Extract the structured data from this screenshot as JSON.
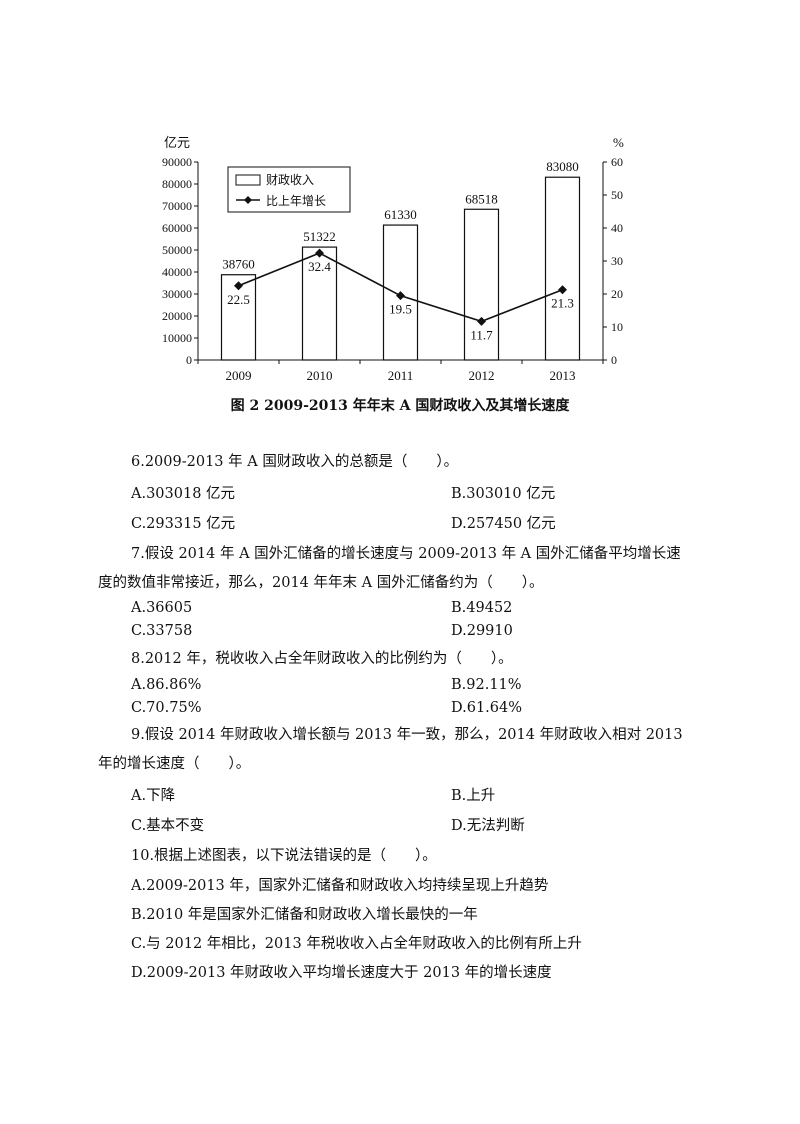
{
  "chart_data": {
    "type": "bar+line",
    "categories": [
      "2009",
      "2010",
      "2011",
      "2012",
      "2013"
    ],
    "series": [
      {
        "name": "财政收入",
        "type": "bar",
        "axis": "left",
        "values": [
          38760,
          51322,
          61330,
          68518,
          83080
        ]
      },
      {
        "name": "比上年增长",
        "type": "line",
        "axis": "right",
        "values": [
          22.5,
          32.4,
          19.5,
          11.7,
          21.3
        ]
      }
    ],
    "left_axis": {
      "unit": "亿元",
      "ylim": [
        0,
        90000
      ],
      "ticks": [
        0,
        10000,
        20000,
        30000,
        40000,
        50000,
        60000,
        70000,
        80000,
        90000
      ]
    },
    "right_axis": {
      "unit": "%",
      "ylim": [
        0,
        60
      ],
      "ticks": [
        0,
        10,
        20,
        30,
        40,
        50,
        60
      ]
    },
    "legend_position": "top-left",
    "grid": false
  },
  "caption": "图 2 2009-2013 年年末 A 国财政收入及其增长速度",
  "questions": {
    "q6": {
      "stem": "6.2009-2013 年 A 国财政收入的总额是（　　）。",
      "a": "A.303018 亿元",
      "b": "B.303010 亿元",
      "c": "C.293315 亿元",
      "d": "D.257450 亿元"
    },
    "q7": {
      "stem1": "7.假设 2014 年 A 国外汇储备的增长速度与 2009-2013 年 A 国外汇储备平均增长速",
      "stem2": "度的数值非常接近，那么，2014 年年末 A 国外汇储备约为（　　）。",
      "a": "A.36605",
      "b": "B.49452",
      "c": "C.33758",
      "d": "D.29910"
    },
    "q8": {
      "stem": "8.2012 年，税收收入占全年财政收入的比例约为（　　）。",
      "a": "A.86.86%",
      "b": "B.92.11%",
      "c": "C.70.75%",
      "d": "D.61.64%"
    },
    "q9": {
      "stem1": "9.假设 2014 年财政收入增长额与 2013 年一致，那么，2014 年财政收入相对 2013",
      "stem2": "年的增长速度（　　）。",
      "a": "A.下降",
      "b": "B.上升",
      "c": "C.基本不变",
      "d": "D.无法判断"
    },
    "q10": {
      "stem": "10.根据上述图表，以下说法错误的是（　　）。",
      "a": "A.2009-2013 年，国家外汇储备和财政收入均持续呈现上升趋势",
      "b": "B.2010 年是国家外汇储备和财政收入增长最快的一年",
      "c": "C.与 2012 年相比，2013 年税收收入占全年财政收入的比例有所上升",
      "d": "D.2009-2013 年财政收入平均增长速度大于 2013 年的增长速度"
    }
  }
}
